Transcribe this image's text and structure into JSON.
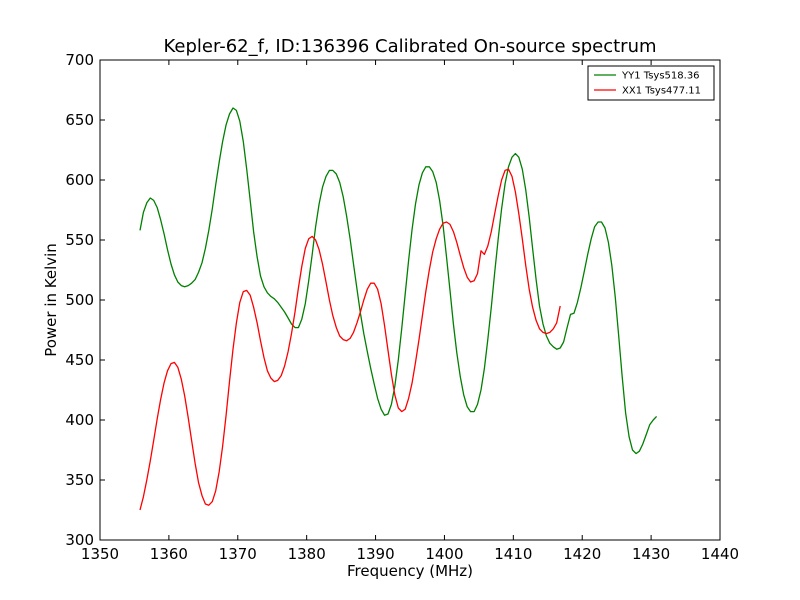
{
  "chart_data": {
    "type": "line",
    "title": "Kepler-62_f, ID:136396 Calibrated On-source spectrum",
    "xlabel": "Frequency (MHz)",
    "ylabel": "Power in Kelvin",
    "xlim": [
      1350,
      1440
    ],
    "ylim": [
      300,
      700
    ],
    "xticks": [
      1350,
      1360,
      1370,
      1380,
      1390,
      1400,
      1410,
      1420,
      1430,
      1440
    ],
    "yticks": [
      300,
      350,
      400,
      450,
      500,
      550,
      600,
      650,
      700
    ],
    "grid": false,
    "legend_position": "top-right",
    "series": [
      {
        "name": "YY1 Tsys518.36",
        "color": "#008000",
        "points": [
          [
            1355.8,
            558
          ],
          [
            1356.3,
            573
          ],
          [
            1356.8,
            581
          ],
          [
            1357.3,
            585
          ],
          [
            1357.8,
            583
          ],
          [
            1358.3,
            577
          ],
          [
            1358.8,
            567
          ],
          [
            1359.3,
            555
          ],
          [
            1359.8,
            542
          ],
          [
            1360.3,
            530
          ],
          [
            1360.8,
            521
          ],
          [
            1361.3,
            515
          ],
          [
            1361.8,
            512
          ],
          [
            1362.3,
            511
          ],
          [
            1362.8,
            512
          ],
          [
            1363.3,
            514
          ],
          [
            1363.8,
            517
          ],
          [
            1364.3,
            523
          ],
          [
            1364.8,
            531
          ],
          [
            1365.3,
            543
          ],
          [
            1365.8,
            558
          ],
          [
            1366.3,
            576
          ],
          [
            1366.8,
            596
          ],
          [
            1367.3,
            615
          ],
          [
            1367.8,
            632
          ],
          [
            1368.3,
            646
          ],
          [
            1368.8,
            655
          ],
          [
            1369.3,
            660
          ],
          [
            1369.8,
            658
          ],
          [
            1370.3,
            649
          ],
          [
            1370.8,
            632
          ],
          [
            1371.3,
            609
          ],
          [
            1371.8,
            583
          ],
          [
            1372.3,
            557
          ],
          [
            1372.8,
            536
          ],
          [
            1373.3,
            520
          ],
          [
            1373.8,
            511
          ],
          [
            1374.3,
            506
          ],
          [
            1374.8,
            503
          ],
          [
            1375.3,
            501
          ],
          [
            1375.8,
            498
          ],
          [
            1376.3,
            494
          ],
          [
            1376.8,
            490
          ],
          [
            1377.3,
            485
          ],
          [
            1377.8,
            480
          ],
          [
            1378.3,
            477
          ],
          [
            1378.8,
            477
          ],
          [
            1379.3,
            484
          ],
          [
            1379.8,
            497
          ],
          [
            1380.3,
            516
          ],
          [
            1380.8,
            538
          ],
          [
            1381.3,
            561
          ],
          [
            1381.8,
            580
          ],
          [
            1382.3,
            594
          ],
          [
            1382.8,
            603
          ],
          [
            1383.3,
            608
          ],
          [
            1383.8,
            608
          ],
          [
            1384.3,
            605
          ],
          [
            1384.8,
            598
          ],
          [
            1385.3,
            586
          ],
          [
            1385.8,
            570
          ],
          [
            1386.3,
            551
          ],
          [
            1386.8,
            530
          ],
          [
            1387.3,
            509
          ],
          [
            1387.8,
            489
          ],
          [
            1388.3,
            472
          ],
          [
            1388.8,
            457
          ],
          [
            1389.3,
            443
          ],
          [
            1389.8,
            430
          ],
          [
            1390.3,
            418
          ],
          [
            1390.8,
            409
          ],
          [
            1391.3,
            404
          ],
          [
            1391.8,
            405
          ],
          [
            1392.3,
            413
          ],
          [
            1392.8,
            428
          ],
          [
            1393.3,
            450
          ],
          [
            1393.8,
            476
          ],
          [
            1394.3,
            505
          ],
          [
            1394.8,
            533
          ],
          [
            1395.3,
            559
          ],
          [
            1395.8,
            580
          ],
          [
            1396.3,
            596
          ],
          [
            1396.8,
            606
          ],
          [
            1397.3,
            611
          ],
          [
            1397.8,
            611
          ],
          [
            1398.3,
            607
          ],
          [
            1398.8,
            598
          ],
          [
            1399.3,
            583
          ],
          [
            1399.8,
            562
          ],
          [
            1400.3,
            536
          ],
          [
            1400.8,
            508
          ],
          [
            1401.3,
            480
          ],
          [
            1401.8,
            456
          ],
          [
            1402.3,
            436
          ],
          [
            1402.8,
            421
          ],
          [
            1403.3,
            411
          ],
          [
            1403.8,
            407
          ],
          [
            1404.3,
            407
          ],
          [
            1404.8,
            413
          ],
          [
            1405.3,
            425
          ],
          [
            1405.8,
            443
          ],
          [
            1406.3,
            467
          ],
          [
            1406.8,
            494
          ],
          [
            1407.3,
            523
          ],
          [
            1407.8,
            551
          ],
          [
            1408.3,
            576
          ],
          [
            1408.8,
            597
          ],
          [
            1409.3,
            611
          ],
          [
            1409.8,
            619
          ],
          [
            1410.3,
            622
          ],
          [
            1410.8,
            619
          ],
          [
            1411.3,
            609
          ],
          [
            1411.8,
            592
          ],
          [
            1412.3,
            569
          ],
          [
            1412.8,
            543
          ],
          [
            1413.3,
            517
          ],
          [
            1413.8,
            495
          ],
          [
            1414.3,
            480
          ],
          [
            1414.8,
            470
          ],
          [
            1415.3,
            464
          ],
          [
            1415.8,
            461
          ],
          [
            1416.3,
            459
          ],
          [
            1416.8,
            460
          ],
          [
            1417.3,
            465
          ],
          [
            1417.8,
            477
          ],
          [
            1418.3,
            488
          ],
          [
            1418.8,
            489
          ],
          [
            1419.3,
            498
          ],
          [
            1419.8,
            510
          ],
          [
            1420.3,
            524
          ],
          [
            1420.8,
            538
          ],
          [
            1421.3,
            551
          ],
          [
            1421.8,
            561
          ],
          [
            1422.3,
            565
          ],
          [
            1422.8,
            565
          ],
          [
            1423.3,
            560
          ],
          [
            1423.8,
            548
          ],
          [
            1424.3,
            529
          ],
          [
            1424.8,
            502
          ],
          [
            1425.3,
            470
          ],
          [
            1425.8,
            436
          ],
          [
            1426.3,
            406
          ],
          [
            1426.8,
            386
          ],
          [
            1427.3,
            375
          ],
          [
            1427.8,
            372
          ],
          [
            1428.3,
            374
          ],
          [
            1428.8,
            380
          ],
          [
            1429.3,
            388
          ],
          [
            1429.8,
            396
          ],
          [
            1430.3,
            400
          ],
          [
            1430.8,
            403
          ]
        ]
      },
      {
        "name": "XX1 Tsys477.11",
        "color": "#ff0000",
        "points": [
          [
            1355.8,
            325
          ],
          [
            1356.3,
            336
          ],
          [
            1356.8,
            350
          ],
          [
            1357.3,
            366
          ],
          [
            1357.8,
            383
          ],
          [
            1358.3,
            401
          ],
          [
            1358.8,
            417
          ],
          [
            1359.3,
            431
          ],
          [
            1359.8,
            441
          ],
          [
            1360.3,
            447
          ],
          [
            1360.8,
            448
          ],
          [
            1361.3,
            444
          ],
          [
            1361.8,
            434
          ],
          [
            1362.3,
            420
          ],
          [
            1362.8,
            402
          ],
          [
            1363.3,
            383
          ],
          [
            1363.8,
            364
          ],
          [
            1364.3,
            348
          ],
          [
            1364.8,
            337
          ],
          [
            1365.3,
            330
          ],
          [
            1365.8,
            329
          ],
          [
            1366.3,
            332
          ],
          [
            1366.8,
            341
          ],
          [
            1367.3,
            357
          ],
          [
            1367.8,
            378
          ],
          [
            1368.3,
            404
          ],
          [
            1368.8,
            432
          ],
          [
            1369.3,
            459
          ],
          [
            1369.8,
            481
          ],
          [
            1370.3,
            498
          ],
          [
            1370.8,
            507
          ],
          [
            1371.3,
            508
          ],
          [
            1371.8,
            504
          ],
          [
            1372.3,
            494
          ],
          [
            1372.8,
            481
          ],
          [
            1373.3,
            466
          ],
          [
            1373.8,
            452
          ],
          [
            1374.3,
            441
          ],
          [
            1374.8,
            435
          ],
          [
            1375.3,
            432
          ],
          [
            1375.8,
            433
          ],
          [
            1376.3,
            437
          ],
          [
            1376.8,
            445
          ],
          [
            1377.3,
            457
          ],
          [
            1377.8,
            472
          ],
          [
            1378.3,
            490
          ],
          [
            1378.8,
            510
          ],
          [
            1379.3,
            528
          ],
          [
            1379.8,
            543
          ],
          [
            1380.3,
            551
          ],
          [
            1380.8,
            553
          ],
          [
            1381.3,
            550
          ],
          [
            1381.8,
            542
          ],
          [
            1382.3,
            530
          ],
          [
            1382.8,
            515
          ],
          [
            1383.3,
            500
          ],
          [
            1383.8,
            487
          ],
          [
            1384.3,
            477
          ],
          [
            1384.8,
            470
          ],
          [
            1385.3,
            467
          ],
          [
            1385.8,
            466
          ],
          [
            1386.3,
            468
          ],
          [
            1386.8,
            473
          ],
          [
            1387.3,
            481
          ],
          [
            1387.8,
            490
          ],
          [
            1388.3,
            500
          ],
          [
            1388.8,
            509
          ],
          [
            1389.3,
            514
          ],
          [
            1389.8,
            514
          ],
          [
            1390.3,
            509
          ],
          [
            1390.8,
            497
          ],
          [
            1391.3,
            479
          ],
          [
            1391.8,
            458
          ],
          [
            1392.3,
            438
          ],
          [
            1392.8,
            421
          ],
          [
            1393.3,
            410
          ],
          [
            1393.8,
            407
          ],
          [
            1394.3,
            409
          ],
          [
            1394.8,
            418
          ],
          [
            1395.3,
            431
          ],
          [
            1395.8,
            448
          ],
          [
            1396.3,
            467
          ],
          [
            1396.8,
            487
          ],
          [
            1397.3,
            507
          ],
          [
            1397.8,
            525
          ],
          [
            1398.3,
            540
          ],
          [
            1398.8,
            551
          ],
          [
            1399.3,
            559
          ],
          [
            1399.8,
            564
          ],
          [
            1400.3,
            565
          ],
          [
            1400.8,
            563
          ],
          [
            1401.3,
            557
          ],
          [
            1401.8,
            548
          ],
          [
            1402.3,
            537
          ],
          [
            1402.8,
            527
          ],
          [
            1403.3,
            519
          ],
          [
            1403.8,
            515
          ],
          [
            1404.3,
            516
          ],
          [
            1404.8,
            522
          ],
          [
            1405.3,
            541
          ],
          [
            1405.8,
            538
          ],
          [
            1406.3,
            545
          ],
          [
            1406.8,
            557
          ],
          [
            1407.3,
            572
          ],
          [
            1407.8,
            587
          ],
          [
            1408.3,
            600
          ],
          [
            1408.8,
            608
          ],
          [
            1409.3,
            609
          ],
          [
            1409.8,
            603
          ],
          [
            1410.3,
            590
          ],
          [
            1410.8,
            572
          ],
          [
            1411.3,
            551
          ],
          [
            1411.8,
            529
          ],
          [
            1412.3,
            509
          ],
          [
            1412.8,
            494
          ],
          [
            1413.3,
            483
          ],
          [
            1413.8,
            476
          ],
          [
            1414.3,
            473
          ],
          [
            1414.8,
            472
          ],
          [
            1415.3,
            473
          ],
          [
            1415.8,
            476
          ],
          [
            1416.3,
            481
          ],
          [
            1416.8,
            495
          ]
        ]
      }
    ]
  }
}
